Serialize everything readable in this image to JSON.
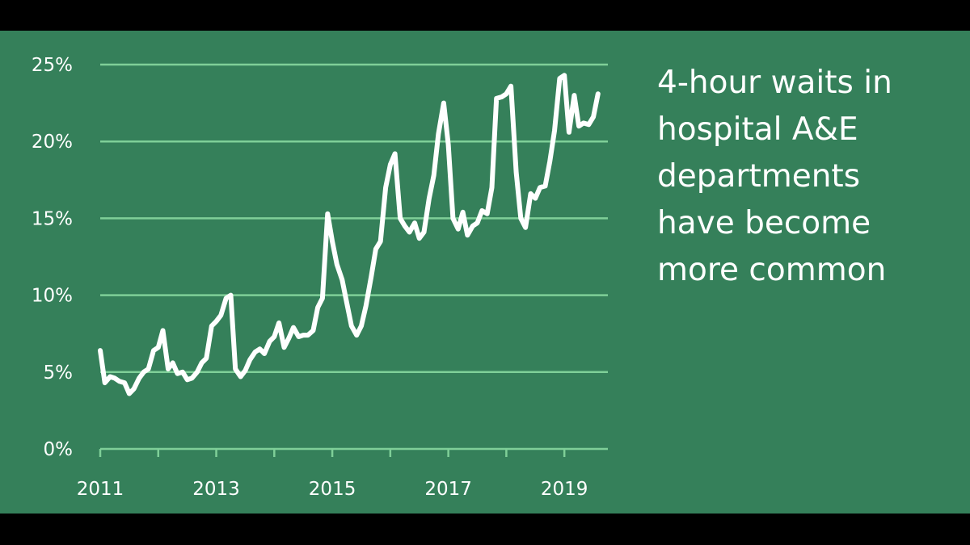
{
  "colors": {
    "background": "#35805a",
    "letterbox": "#000000",
    "line": "#ffffff",
    "gridline": "#7fcf98",
    "text": "#ffffff"
  },
  "headline": {
    "lines": [
      "4-hour waits in",
      "hospital A&E",
      "departments",
      "have become",
      "more common"
    ]
  },
  "chart_data": {
    "type": "line",
    "title": "",
    "xlabel": "",
    "ylabel": "",
    "xlim": [
      2011,
      2019.75
    ],
    "ylim": [
      0,
      25
    ],
    "x_ticks": [
      2011,
      2013,
      2015,
      2017,
      2019
    ],
    "x_tick_labels": [
      "2011",
      "2013",
      "2015",
      "2017",
      "2019"
    ],
    "y_ticks": [
      0,
      5,
      10,
      15,
      20,
      25
    ],
    "y_tick_labels": [
      "0%",
      "5%",
      "10%",
      "15%",
      "20%",
      "25%"
    ],
    "grid": true,
    "legend": "none",
    "series": [
      {
        "name": "",
        "color": "#ffffff",
        "points": [
          [
            2011.0,
            6.4
          ],
          [
            2011.08,
            4.3
          ],
          [
            2011.17,
            4.7
          ],
          [
            2011.25,
            4.6
          ],
          [
            2011.33,
            4.4
          ],
          [
            2011.42,
            4.3
          ],
          [
            2011.5,
            3.6
          ],
          [
            2011.58,
            3.9
          ],
          [
            2011.67,
            4.6
          ],
          [
            2011.75,
            5.0
          ],
          [
            2011.83,
            5.2
          ],
          [
            2011.92,
            6.4
          ],
          [
            2012.0,
            6.6
          ],
          [
            2012.08,
            7.7
          ],
          [
            2012.17,
            5.2
          ],
          [
            2012.25,
            5.6
          ],
          [
            2012.33,
            4.9
          ],
          [
            2012.42,
            5.0
          ],
          [
            2012.5,
            4.5
          ],
          [
            2012.58,
            4.6
          ],
          [
            2012.67,
            5.0
          ],
          [
            2012.75,
            5.6
          ],
          [
            2012.83,
            5.9
          ],
          [
            2012.92,
            8.0
          ],
          [
            2013.0,
            8.3
          ],
          [
            2013.08,
            8.7
          ],
          [
            2013.17,
            9.8
          ],
          [
            2013.25,
            10.0
          ],
          [
            2013.33,
            5.2
          ],
          [
            2013.42,
            4.7
          ],
          [
            2013.5,
            5.1
          ],
          [
            2013.58,
            5.8
          ],
          [
            2013.67,
            6.3
          ],
          [
            2013.75,
            6.5
          ],
          [
            2013.83,
            6.2
          ],
          [
            2013.92,
            7.0
          ],
          [
            2014.0,
            7.3
          ],
          [
            2014.08,
            8.2
          ],
          [
            2014.17,
            6.6
          ],
          [
            2014.25,
            7.2
          ],
          [
            2014.33,
            7.9
          ],
          [
            2014.42,
            7.3
          ],
          [
            2014.5,
            7.4
          ],
          [
            2014.58,
            7.4
          ],
          [
            2014.67,
            7.7
          ],
          [
            2014.75,
            9.2
          ],
          [
            2014.83,
            9.8
          ],
          [
            2014.92,
            15.3
          ],
          [
            2015.0,
            13.5
          ],
          [
            2015.08,
            12.0
          ],
          [
            2015.17,
            11.0
          ],
          [
            2015.25,
            9.5
          ],
          [
            2015.33,
            8.0
          ],
          [
            2015.42,
            7.4
          ],
          [
            2015.5,
            8.0
          ],
          [
            2015.58,
            9.3
          ],
          [
            2015.67,
            11.2
          ],
          [
            2015.75,
            13.0
          ],
          [
            2015.83,
            13.5
          ],
          [
            2015.92,
            17.0
          ],
          [
            2016.0,
            18.5
          ],
          [
            2016.08,
            19.2
          ],
          [
            2016.17,
            15.0
          ],
          [
            2016.25,
            14.5
          ],
          [
            2016.33,
            14.1
          ],
          [
            2016.42,
            14.7
          ],
          [
            2016.5,
            13.7
          ],
          [
            2016.58,
            14.1
          ],
          [
            2016.67,
            16.3
          ],
          [
            2016.75,
            17.8
          ],
          [
            2016.83,
            20.5
          ],
          [
            2016.92,
            22.5
          ],
          [
            2017.0,
            19.8
          ],
          [
            2017.08,
            15.0
          ],
          [
            2017.17,
            14.3
          ],
          [
            2017.25,
            15.4
          ],
          [
            2017.33,
            13.9
          ],
          [
            2017.42,
            14.5
          ],
          [
            2017.5,
            14.7
          ],
          [
            2017.58,
            15.5
          ],
          [
            2017.67,
            15.3
          ],
          [
            2017.75,
            17.0
          ],
          [
            2017.83,
            22.8
          ],
          [
            2017.92,
            22.9
          ],
          [
            2018.0,
            23.1
          ],
          [
            2018.08,
            23.6
          ],
          [
            2018.17,
            18.0
          ],
          [
            2018.25,
            15.0
          ],
          [
            2018.33,
            14.4
          ],
          [
            2018.42,
            16.6
          ],
          [
            2018.5,
            16.3
          ],
          [
            2018.58,
            17.0
          ],
          [
            2018.67,
            17.1
          ],
          [
            2018.75,
            18.7
          ],
          [
            2018.83,
            20.7
          ],
          [
            2018.92,
            24.1
          ],
          [
            2019.0,
            24.3
          ],
          [
            2019.08,
            20.6
          ],
          [
            2019.17,
            23.0
          ],
          [
            2019.25,
            21.0
          ],
          [
            2019.33,
            21.2
          ],
          [
            2019.42,
            21.1
          ],
          [
            2019.5,
            21.6
          ],
          [
            2019.58,
            23.1
          ]
        ]
      }
    ]
  }
}
